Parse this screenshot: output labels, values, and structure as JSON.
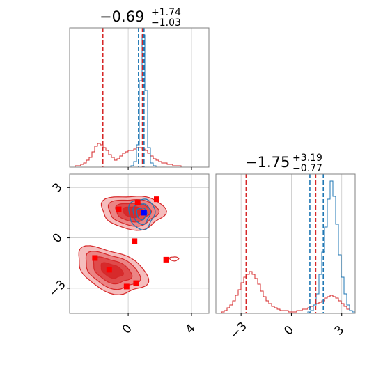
{
  "colors": {
    "red": "#d62728",
    "blue": "#1f77b4",
    "marker_blue": "#0000ff",
    "marker_red": "#ff0000",
    "grid": "#c8c8c8",
    "axis_frame": "#808080"
  },
  "chart_data": {
    "type": "corner",
    "parameters": [
      {
        "title": {
          "median": "−0.69",
          "plus": "+1.74",
          "minus": "−1.03"
        },
        "red_lines": [
          -1.6,
          0.9
        ],
        "blue_lines": [
          0.65,
          1.0
        ],
        "xlim": [
          -3.7,
          5.1
        ],
        "xticks": [
          0,
          4
        ],
        "xtick_labels": [
          "0",
          "4"
        ]
      },
      {
        "title": {
          "median": "−1.75",
          "plus": "+3.19",
          "minus": "−0.77"
        },
        "red_lines": [
          -2.7,
          1.45
        ],
        "blue_lines": [
          1.1,
          1.9
        ],
        "xlim": [
          -4.5,
          3.8
        ],
        "xticks": [
          -3,
          0,
          3
        ],
        "xtick_labels": [
          "−3",
          "0",
          "3"
        ]
      }
    ],
    "joint_panel": {
      "xlim": [
        -3.7,
        5.1
      ],
      "ylim": [
        -4.5,
        3.8
      ],
      "yticks": [
        -3,
        0,
        3
      ],
      "ytick_labels": [
        "−3",
        "0",
        "3"
      ],
      "red_markers": [
        [
          0.6,
          2.1
        ],
        [
          1.8,
          2.3
        ],
        [
          -0.6,
          1.7
        ],
        [
          -2.1,
          -1.2
        ],
        [
          -1.2,
          -1.9
        ],
        [
          0.4,
          -0.2
        ],
        [
          2.4,
          -1.3
        ],
        [
          -0.1,
          -2.9
        ],
        [
          0.5,
          -2.7
        ]
      ],
      "blue_markers": [
        [
          1.0,
          1.5
        ]
      ]
    },
    "histograms": {
      "param1_blue": {
        "range": [
          -3.7,
          5.1
        ],
        "bins": 50,
        "counts": [
          0,
          0,
          0,
          0,
          0,
          0,
          0,
          0,
          0,
          0,
          0,
          0,
          0,
          0,
          0,
          0,
          0,
          0,
          0,
          0,
          0,
          0,
          1,
          4,
          16,
          62,
          95,
          55,
          14,
          3,
          1,
          0,
          0,
          0,
          0,
          0,
          0,
          0,
          0,
          0,
          0,
          0,
          0,
          0,
          0,
          0,
          0,
          0,
          0,
          0
        ]
      },
      "param1_red": {
        "range": [
          -3.7,
          5.1
        ],
        "bins": 50,
        "counts": [
          0,
          0,
          1,
          1,
          2,
          3,
          5,
          7,
          11,
          15,
          17,
          16,
          14,
          12,
          9,
          7,
          5,
          6,
          8,
          10,
          11,
          12,
          12,
          13,
          14,
          14,
          13,
          12,
          10,
          8,
          6,
          5,
          4,
          3,
          3,
          2,
          2,
          1,
          1,
          1,
          0,
          0,
          0,
          0,
          0,
          0,
          0,
          0,
          0,
          0
        ]
      },
      "param2_blue": {
        "range": [
          -4.5,
          3.8
        ],
        "bins": 50,
        "counts": [
          0,
          0,
          0,
          0,
          0,
          0,
          0,
          0,
          0,
          0,
          0,
          0,
          0,
          0,
          0,
          0,
          0,
          0,
          0,
          0,
          0,
          0,
          0,
          0,
          0,
          0,
          0,
          0,
          0,
          0,
          0,
          0,
          0,
          1,
          2,
          6,
          14,
          28,
          44,
          62,
          82,
          95,
          84,
          64,
          42,
          26,
          14,
          6,
          2,
          1
        ]
      },
      "param2_red": {
        "range": [
          -4.5,
          3.8
        ],
        "bins": 50,
        "counts": [
          0,
          0,
          1,
          2,
          4,
          6,
          9,
          13,
          17,
          22,
          26,
          28,
          30,
          28,
          25,
          21,
          16,
          12,
          9,
          7,
          5,
          4,
          3,
          2,
          2,
          2,
          1,
          1,
          1,
          2,
          2,
          3,
          3,
          4,
          5,
          6,
          7,
          8,
          9,
          11,
          12,
          13,
          12,
          11,
          9,
          7,
          5,
          3,
          2,
          1
        ]
      }
    }
  }
}
